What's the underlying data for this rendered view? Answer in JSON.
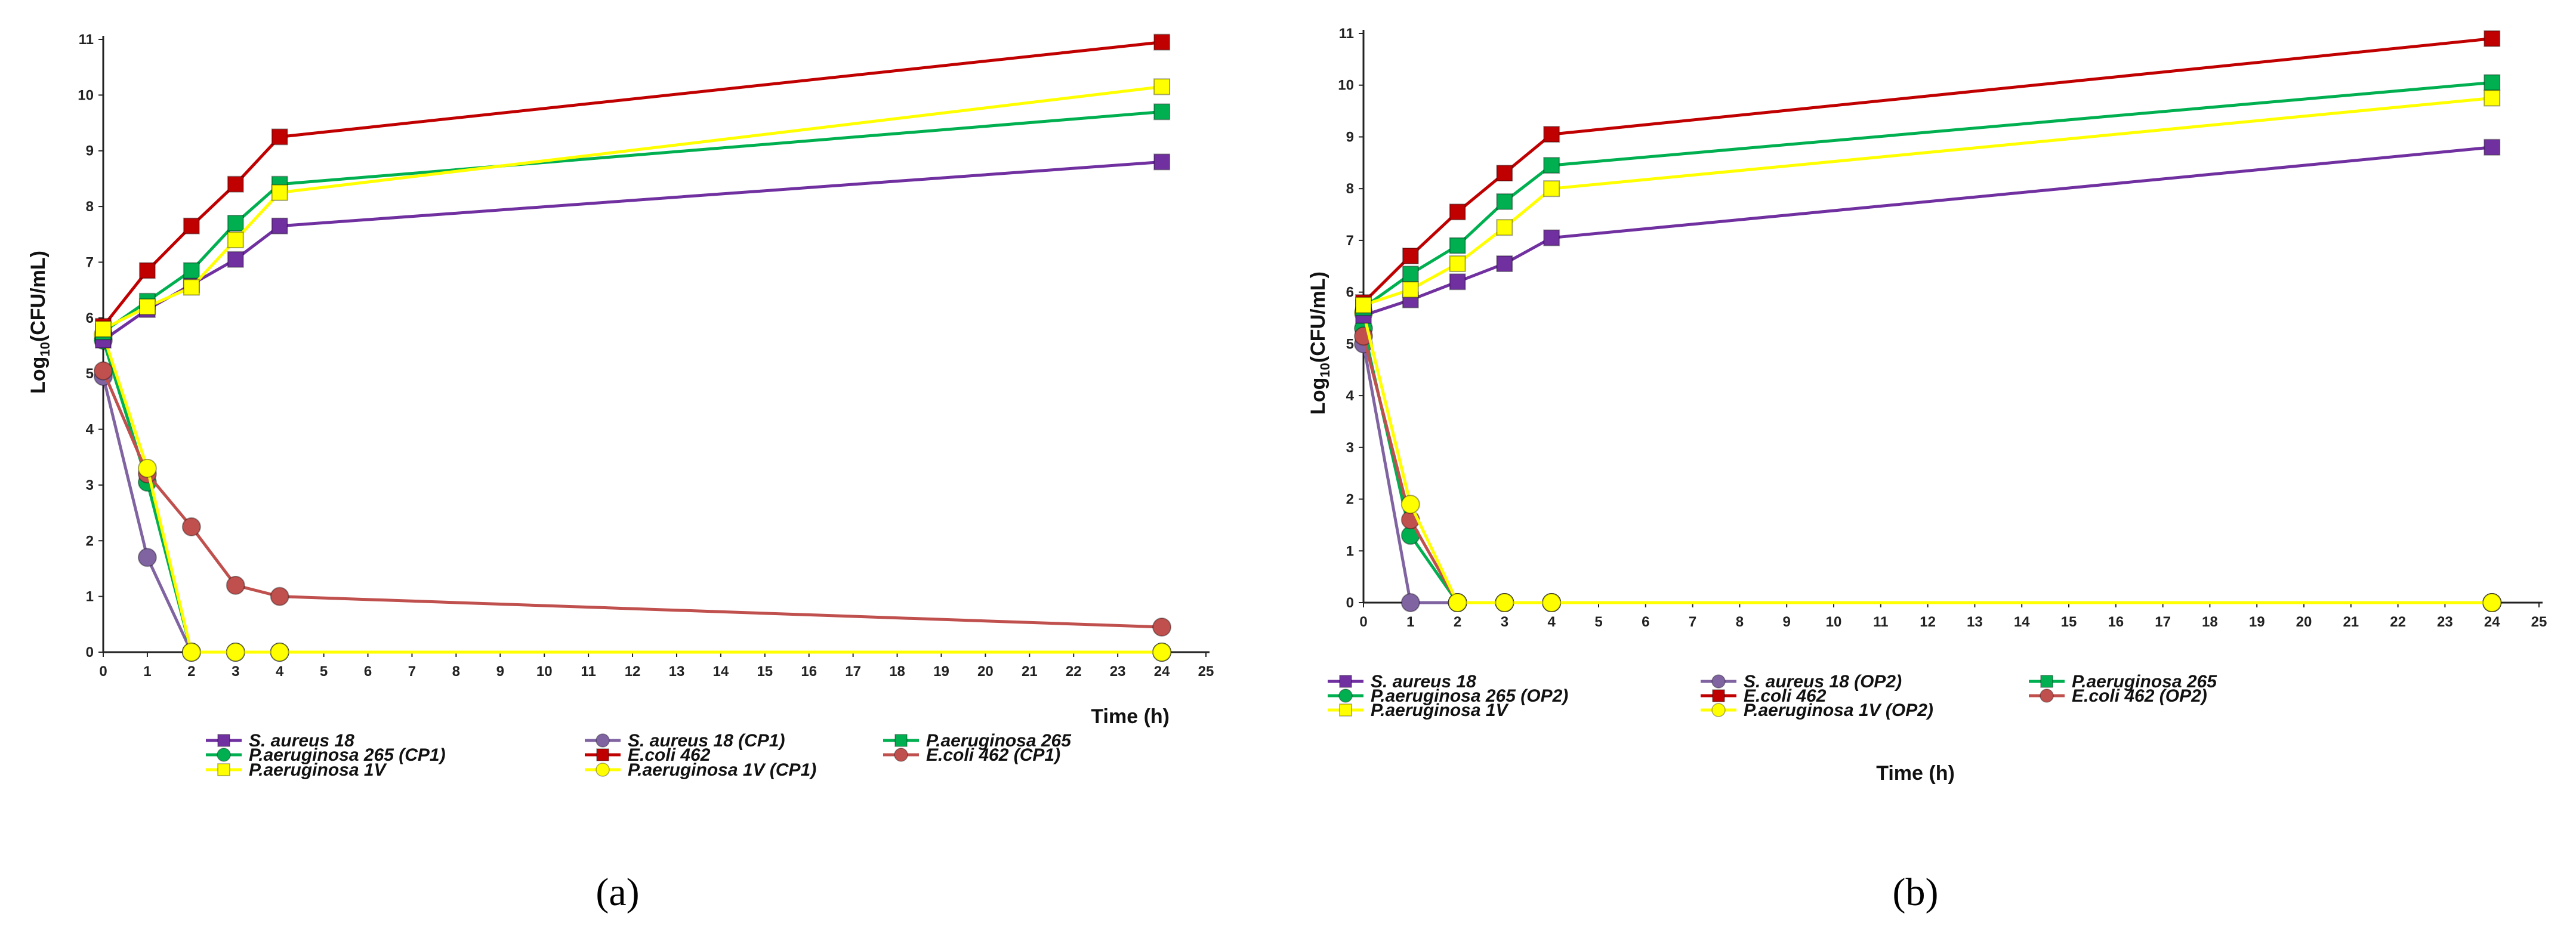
{
  "chart_data": [
    {
      "type": "line",
      "panel_label": "(a)",
      "xlabel": "Time (h)",
      "ylabel_prefix": "Log",
      "ylabel_sub": "10",
      "ylabel_suffix": "(CFU/mL)",
      "xlim": [
        0,
        25
      ],
      "ylim": [
        0,
        11
      ],
      "xticks": [
        0,
        1,
        2,
        3,
        4,
        5,
        6,
        7,
        8,
        9,
        10,
        11,
        12,
        13,
        14,
        15,
        16,
        17,
        18,
        19,
        20,
        21,
        22,
        23,
        24,
        25
      ],
      "yticks": [
        0,
        1,
        2,
        3,
        4,
        5,
        6,
        7,
        8,
        9,
        10,
        11
      ],
      "x": [
        0,
        1,
        2,
        3,
        4,
        24
      ],
      "series": [
        {
          "name": "S. aureus 18",
          "color": "#7030a0",
          "marker": "square",
          "values": [
            5.6,
            6.15,
            6.6,
            7.05,
            7.65,
            8.8
          ]
        },
        {
          "name": "S. aureus 18 (CP1)",
          "color": "#8064a2",
          "marker": "circle",
          "values": [
            4.95,
            1.7,
            0,
            0,
            0,
            0
          ]
        },
        {
          "name": "P.aeruginosa 265",
          "color": "#00b050",
          "marker": "square",
          "values": [
            5.75,
            6.3,
            6.85,
            7.7,
            8.4,
            9.7
          ]
        },
        {
          "name": "P.aeruginosa 265 (CP1)",
          "color": "#00b050",
          "marker": "circle",
          "values": [
            5.6,
            3.05,
            0,
            0,
            0,
            0
          ]
        },
        {
          "name": "E.coli 462",
          "color": "#c00000",
          "marker": "square",
          "values": [
            5.85,
            6.85,
            7.65,
            8.4,
            9.25,
            10.95
          ]
        },
        {
          "name": "E.coli 462 (CP1)",
          "color": "#c0504d",
          "marker": "circle",
          "values": [
            5.05,
            3.2,
            2.25,
            1.2,
            1.0,
            0.45
          ]
        },
        {
          "name": "P.aeruginosa 1V",
          "color": "#ffff00",
          "marker": "square",
          "values": [
            5.8,
            6.2,
            6.55,
            7.4,
            8.25,
            10.15
          ]
        },
        {
          "name": "P.aeruginosa 1V (CP1)",
          "color": "#ffff00",
          "marker": "circle",
          "values": [
            5.7,
            3.3,
            0,
            0,
            0,
            0
          ]
        }
      ]
    },
    {
      "type": "line",
      "panel_label": "(b)",
      "xlabel": "Time (h)",
      "ylabel_prefix": "Log",
      "ylabel_sub": "10",
      "ylabel_suffix": "(CFU/mL)",
      "xlim": [
        0,
        25
      ],
      "ylim": [
        0,
        11
      ],
      "xticks": [
        0,
        1,
        2,
        3,
        4,
        5,
        6,
        7,
        8,
        9,
        10,
        11,
        12,
        13,
        14,
        15,
        16,
        17,
        18,
        19,
        20,
        21,
        22,
        23,
        24,
        25
      ],
      "yticks": [
        0,
        1,
        2,
        3,
        4,
        5,
        6,
        7,
        8,
        9,
        10,
        11
      ],
      "x": [
        0,
        1,
        2,
        3,
        4,
        24
      ],
      "series": [
        {
          "name": "S. aureus 18",
          "color": "#7030a0",
          "marker": "square",
          "values": [
            5.55,
            5.85,
            6.2,
            6.55,
            7.05,
            8.8
          ]
        },
        {
          "name": "S. aureus 18 (OP2)",
          "color": "#8064a2",
          "marker": "circle",
          "values": [
            5.0,
            0,
            0,
            0,
            0,
            0
          ]
        },
        {
          "name": "P.aeruginosa 265",
          "color": "#00b050",
          "marker": "square",
          "values": [
            5.7,
            6.35,
            6.9,
            7.75,
            8.45,
            10.05
          ]
        },
        {
          "name": "P.aeruginosa 265 (OP2)",
          "color": "#00b050",
          "marker": "circle",
          "values": [
            5.3,
            1.3,
            0,
            0,
            0,
            0
          ]
        },
        {
          "name": "E.coli 462",
          "color": "#c00000",
          "marker": "square",
          "values": [
            5.8,
            6.7,
            7.55,
            8.3,
            9.05,
            10.9
          ]
        },
        {
          "name": "E.coli 462 (OP2)",
          "color": "#c0504d",
          "marker": "circle",
          "values": [
            5.15,
            1.6,
            0,
            0,
            0,
            0
          ]
        },
        {
          "name": "P.aeruginosa 1V",
          "color": "#ffff00",
          "marker": "square",
          "values": [
            5.75,
            6.05,
            6.55,
            7.25,
            8.0,
            9.75
          ]
        },
        {
          "name": "P.aeruginosa 1V (OP2)",
          "color": "#ffff00",
          "marker": "circle",
          "values": [
            5.6,
            1.9,
            0,
            0,
            0,
            0
          ]
        }
      ]
    }
  ]
}
